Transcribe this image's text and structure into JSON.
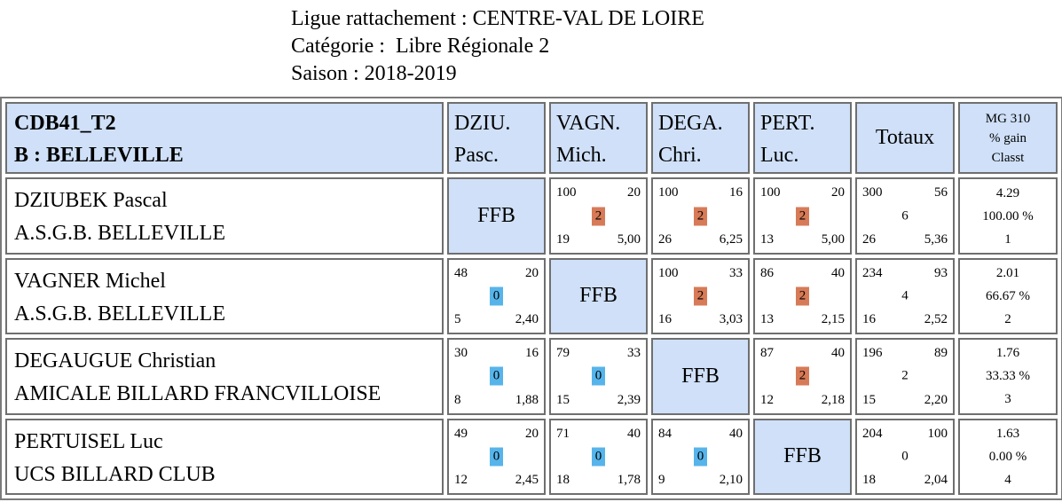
{
  "header": {
    "ligue": "Ligue rattachement : CENTRE-VAL DE LOIRE",
    "categorie": "Catégorie :  Libre Régionale 2",
    "saison": "Saison : 2018-2019"
  },
  "table": {
    "group_code": "CDB41_T2",
    "group_name": "B : BELLEVILLE",
    "columns": [
      {
        "line1": "DZIU.",
        "line2": "Pasc."
      },
      {
        "line1": "VAGN.",
        "line2": "Mich."
      },
      {
        "line1": "DEGA.",
        "line2": "Chri."
      },
      {
        "line1": "PERT.",
        "line2": "Luc."
      }
    ],
    "totals_label": "Totaux",
    "mg_header": {
      "line1": "MG 310",
      "line2": "% gain",
      "line3": "Classt"
    },
    "ffb_label": "FFB",
    "colors": {
      "win": "#d77a57",
      "loss": "#56b4ea",
      "ffb": "#cfe0f8"
    },
    "rows": [
      {
        "name": "DZIUBEK Pascal",
        "club": "A.S.G.B. BELLEVILLE",
        "cells": [
          null,
          {
            "points": "100",
            "reprises": "20",
            "match_pts": "2",
            "serie": "19",
            "moyenne": "5,00"
          },
          {
            "points": "100",
            "reprises": "16",
            "match_pts": "2",
            "serie": "26",
            "moyenne": "6,25"
          },
          {
            "points": "100",
            "reprises": "20",
            "match_pts": "2",
            "serie": "13",
            "moyenne": "5,00"
          }
        ],
        "total": {
          "points": "300",
          "reprises": "56",
          "match_pts": "6",
          "serie": "26",
          "moyenne": "5,36"
        },
        "mg": {
          "mg": "4.29",
          "pct": "100.00 %",
          "rank": "1"
        }
      },
      {
        "name": "VAGNER Michel",
        "club": "A.S.G.B. BELLEVILLE",
        "cells": [
          {
            "points": "48",
            "reprises": "20",
            "match_pts": "0",
            "serie": "5",
            "moyenne": "2,40"
          },
          null,
          {
            "points": "100",
            "reprises": "33",
            "match_pts": "2",
            "serie": "16",
            "moyenne": "3,03"
          },
          {
            "points": "86",
            "reprises": "40",
            "match_pts": "2",
            "serie": "13",
            "moyenne": "2,15"
          }
        ],
        "total": {
          "points": "234",
          "reprises": "93",
          "match_pts": "4",
          "serie": "16",
          "moyenne": "2,52"
        },
        "mg": {
          "mg": "2.01",
          "pct": "66.67 %",
          "rank": "2"
        }
      },
      {
        "name": "DEGAUGUE Christian",
        "club": "AMICALE BILLARD FRANCVILLOISE",
        "cells": [
          {
            "points": "30",
            "reprises": "16",
            "match_pts": "0",
            "serie": "8",
            "moyenne": "1,88"
          },
          {
            "points": "79",
            "reprises": "33",
            "match_pts": "0",
            "serie": "15",
            "moyenne": "2,39"
          },
          null,
          {
            "points": "87",
            "reprises": "40",
            "match_pts": "2",
            "serie": "12",
            "moyenne": "2,18"
          }
        ],
        "total": {
          "points": "196",
          "reprises": "89",
          "match_pts": "2",
          "serie": "15",
          "moyenne": "2,20"
        },
        "mg": {
          "mg": "1.76",
          "pct": "33.33 %",
          "rank": "3"
        }
      },
      {
        "name": "PERTUISEL Luc",
        "club": "UCS BILLARD CLUB",
        "cells": [
          {
            "points": "49",
            "reprises": "20",
            "match_pts": "0",
            "serie": "12",
            "moyenne": "2,45"
          },
          {
            "points": "71",
            "reprises": "40",
            "match_pts": "0",
            "serie": "18",
            "moyenne": "1,78"
          },
          {
            "points": "84",
            "reprises": "40",
            "match_pts": "0",
            "serie": "9",
            "moyenne": "2,10"
          },
          null
        ],
        "total": {
          "points": "204",
          "reprises": "100",
          "match_pts": "0",
          "serie": "18",
          "moyenne": "2,04"
        },
        "mg": {
          "mg": "1.63",
          "pct": "0.00 %",
          "rank": "4"
        }
      }
    ]
  }
}
